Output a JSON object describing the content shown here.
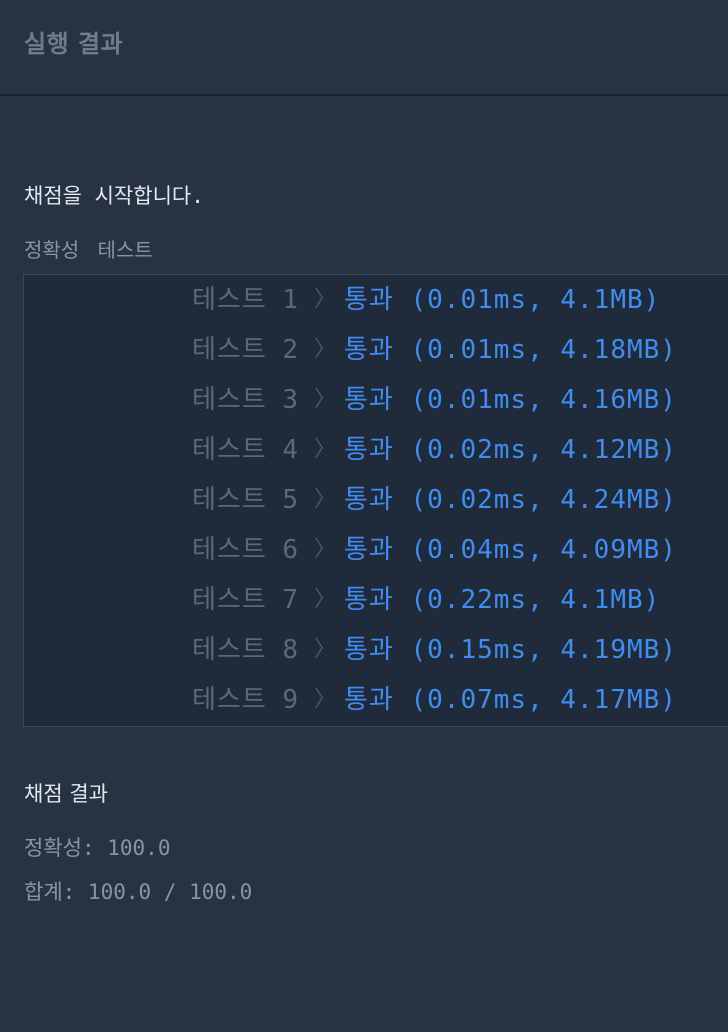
{
  "header": {
    "title": "실행 결과"
  },
  "run": {
    "start_message": "채점을 시작합니다.",
    "section_label": "정확성 테스트"
  },
  "tests": [
    {
      "label": "테스트",
      "number": "1",
      "result": "통과 (0.01ms, 4.1MB)"
    },
    {
      "label": "테스트",
      "number": "2",
      "result": "통과 (0.01ms, 4.18MB)"
    },
    {
      "label": "테스트",
      "number": "3",
      "result": "통과 (0.01ms, 4.16MB)"
    },
    {
      "label": "테스트",
      "number": "4",
      "result": "통과 (0.02ms, 4.12MB)"
    },
    {
      "label": "테스트",
      "number": "5",
      "result": "통과 (0.02ms, 4.24MB)"
    },
    {
      "label": "테스트",
      "number": "6",
      "result": "통과 (0.04ms, 4.09MB)"
    },
    {
      "label": "테스트",
      "number": "7",
      "result": "통과 (0.22ms, 4.1MB)"
    },
    {
      "label": "테스트",
      "number": "8",
      "result": "통과 (0.15ms, 4.19MB)"
    },
    {
      "label": "테스트",
      "number": "9",
      "result": "통과 (0.07ms, 4.17MB)"
    }
  ],
  "grading": {
    "title": "채점 결과",
    "accuracy": "정확성: 100.0",
    "total": "합계: 100.0 / 100.0"
  },
  "colors": {
    "background": "#263343",
    "panel": "#202b3a",
    "pass": "#3d8df4",
    "muted": "#5c6878"
  }
}
